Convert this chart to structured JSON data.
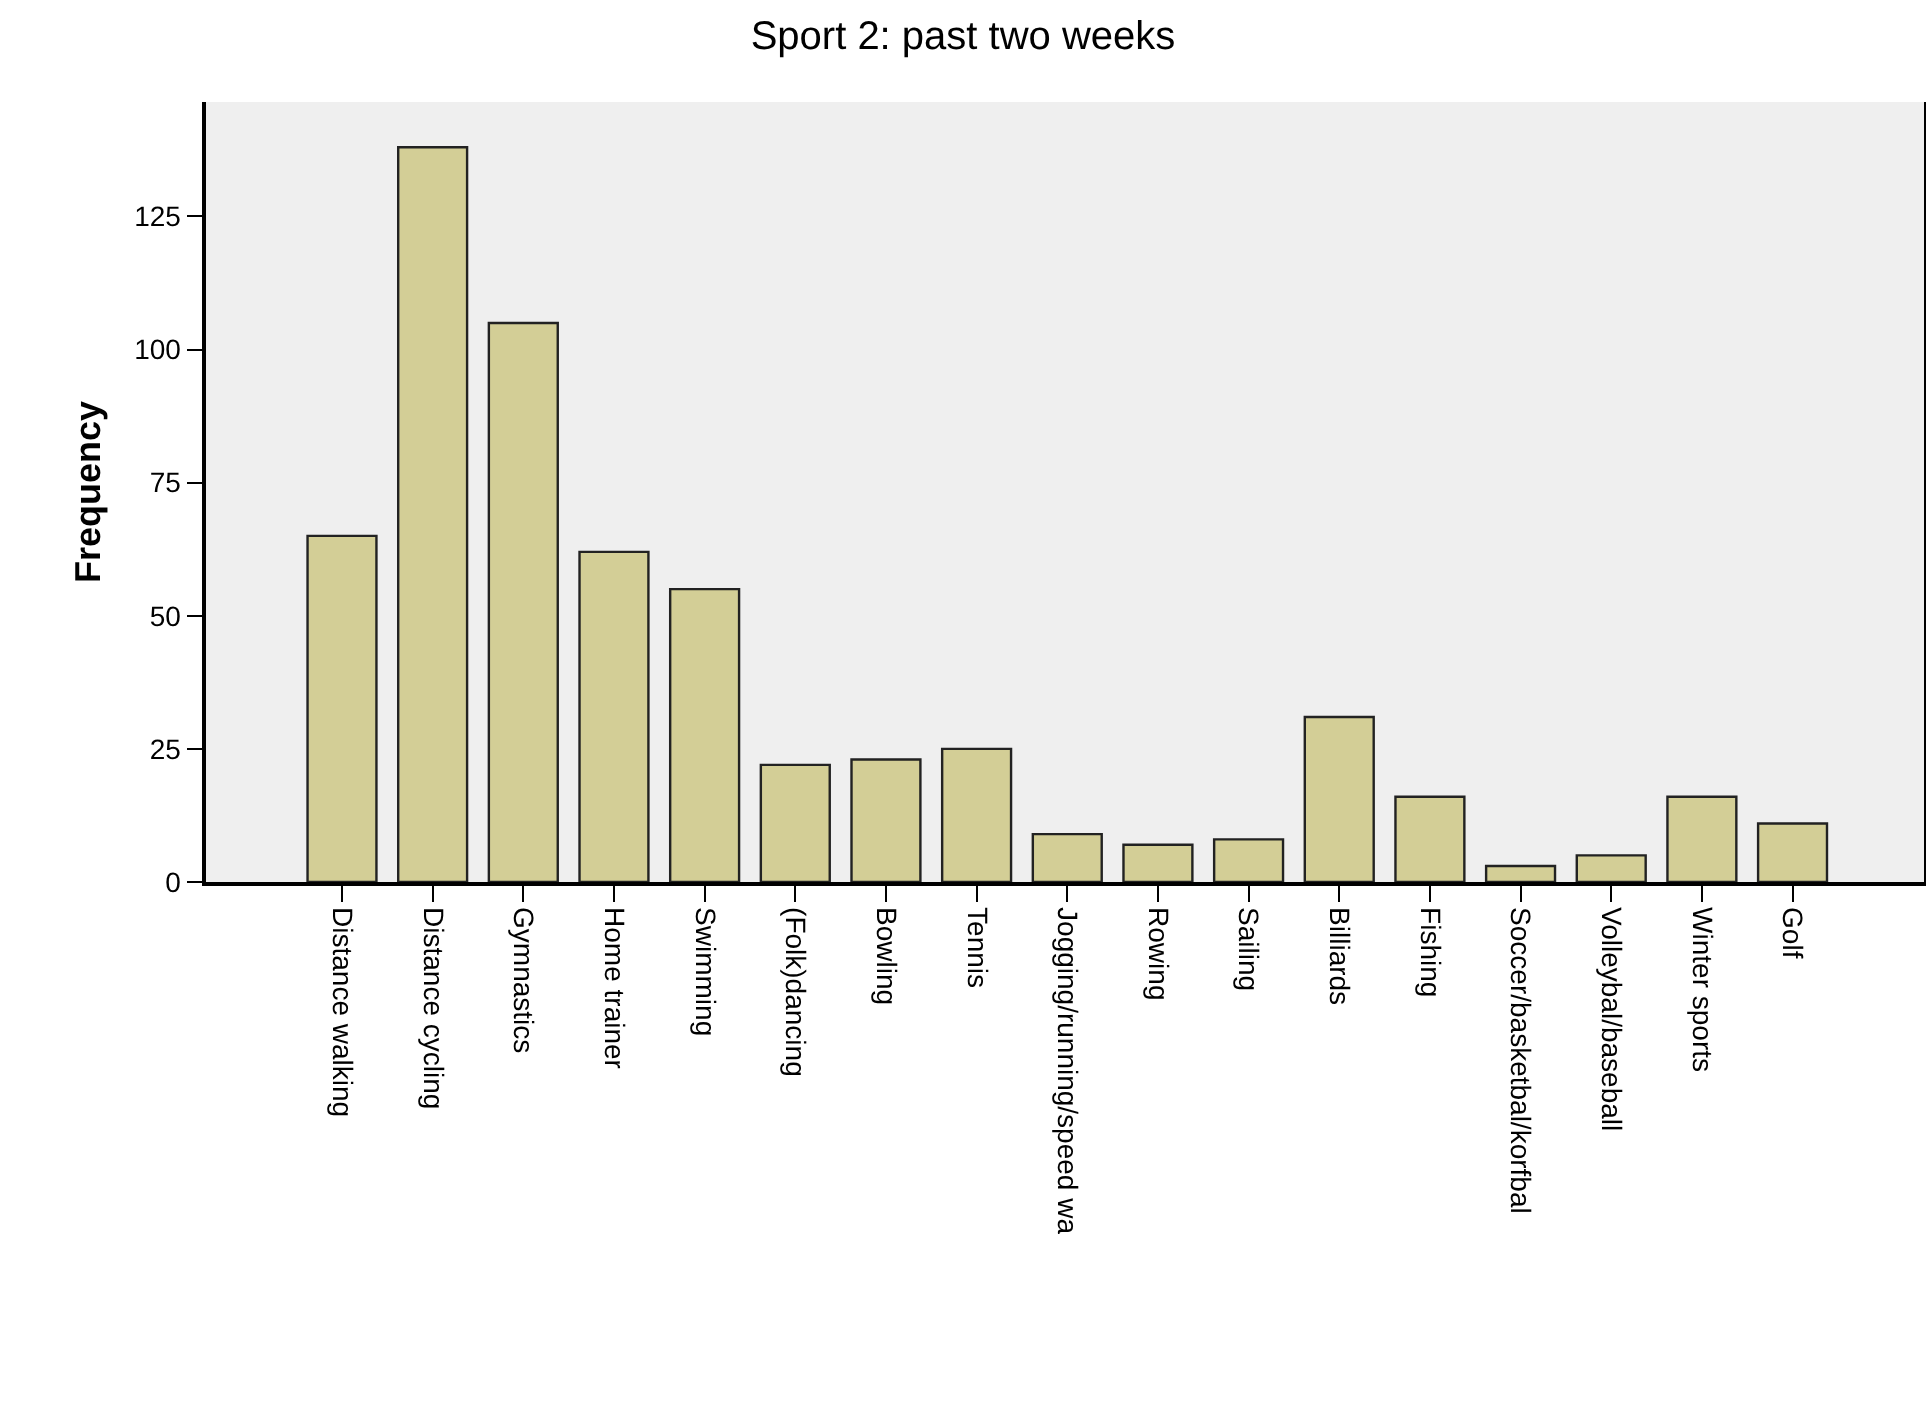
{
  "chart_data": {
    "type": "bar",
    "title": "Sport 2: past two weeks",
    "ylabel": "Frequency",
    "categories": [
      "Distance walking",
      "Distance cycling",
      "Gymnastics",
      "Home trainer",
      "Swimming",
      "(Folk)dancing",
      "Bowling",
      "Tennis",
      "Jogging/running/speed wa",
      "Rowing",
      "Sailing",
      "Billiards",
      "Fishing",
      "Soccer/basketbal/korfbal",
      "Volleybal/baseball",
      "Winter sports",
      "Golf"
    ],
    "values": [
      65,
      138,
      105,
      62,
      55,
      22,
      23,
      25,
      9,
      7,
      8,
      31,
      16,
      3,
      5,
      16,
      11
    ],
    "color": "#d3ce96",
    "ylim": [
      0,
      146.5
    ],
    "yticks": [
      0,
      25,
      50,
      75,
      100,
      125
    ],
    "grid": false
  }
}
